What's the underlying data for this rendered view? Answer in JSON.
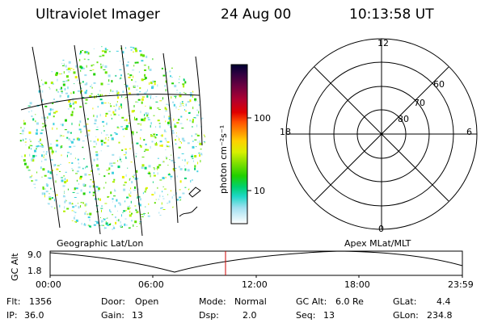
{
  "header": {
    "instrument": "Ultraviolet Imager",
    "date": "24 Aug 00",
    "time": "10:13:58 UT"
  },
  "colorbar": {
    "unit_label": "photon cm⁻²s⁻¹",
    "ticks": [
      "100",
      "10"
    ],
    "colors": [
      "#000030",
      "#200040",
      "#500050",
      "#800040",
      "#b00030",
      "#e00000",
      "#ff5000",
      "#ff9000",
      "#ffd000",
      "#e8f000",
      "#b0f000",
      "#60e000",
      "#20d000",
      "#00d050",
      "#00e0b0",
      "#40d0e0",
      "#a0e0f0",
      "#e0f0f8",
      "#ffffff"
    ]
  },
  "polar_plot": {
    "mlt_labels": {
      "top": "12",
      "left": "18",
      "right": "6",
      "bottom": "0"
    },
    "lat_labels": [
      "60",
      "70",
      "80"
    ]
  },
  "panel_labels": {
    "left": "Geographic Lat/Lon",
    "right": "Apex MLat/MLT"
  },
  "timeline": {
    "axis_title": "GC Alt",
    "y_ticks": [
      "9.0",
      "1.8"
    ],
    "x_ticks": [
      "00:00",
      "06:00",
      "12:00",
      "18:00",
      "23:59"
    ],
    "current_time_marker": "10:13:58"
  },
  "footer": {
    "rows": [
      [
        {
          "label": "Flt:",
          "value": "1356"
        },
        {
          "label": "Door:",
          "value": "Open"
        },
        {
          "label": "Mode:",
          "value": "Normal"
        },
        {
          "label": "GC Alt:",
          "value": "6.0 Re"
        },
        {
          "label": "GLat:",
          "value": "4.4"
        }
      ],
      [
        {
          "label": "IP:",
          "value": "36.0"
        },
        {
          "label": "Gain:",
          "value": "13"
        },
        {
          "label": "Dsp:",
          "value": "2.0"
        },
        {
          "label": "Seq:",
          "value": "13"
        },
        {
          "label": "GLon:",
          "value": "234.8"
        }
      ]
    ]
  }
}
